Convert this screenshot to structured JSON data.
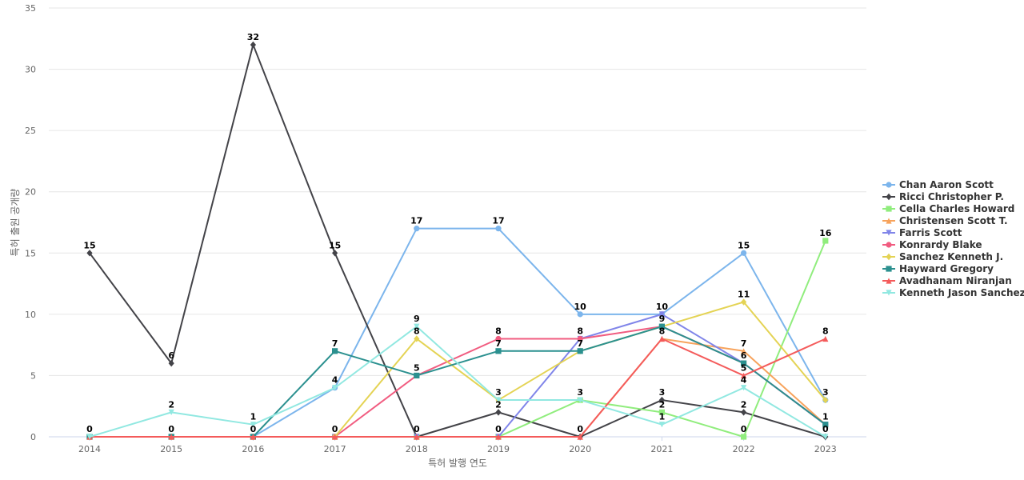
{
  "chart_data": {
    "type": "line",
    "xlabel": "특허 발행 연도",
    "ylabel": "특허 출원 공개량",
    "ylim": [
      0,
      35
    ],
    "yticks": [
      0,
      5,
      10,
      15,
      20,
      25,
      30,
      35
    ],
    "x": [
      "2014",
      "2015",
      "2016",
      "2017",
      "2018",
      "2019",
      "2020",
      "2021",
      "2022",
      "2023"
    ],
    "grid": "horizontal",
    "legend_position": "right",
    "series": [
      {
        "name": "Chan Aaron Scott",
        "color": "#7cb5ec",
        "marker": "circle",
        "values": [
          0,
          0,
          0,
          4,
          17,
          17,
          10,
          10,
          15,
          3
        ]
      },
      {
        "name": "Ricci Christopher P.",
        "color": "#434348",
        "marker": "diamond",
        "values": [
          15,
          6,
          32,
          15,
          0,
          2,
          0,
          3,
          2,
          0
        ]
      },
      {
        "name": "Cella Charles Howard",
        "color": "#90ed7d",
        "marker": "square",
        "values": [
          0,
          0,
          0,
          0,
          0,
          0,
          3,
          2,
          0,
          16
        ]
      },
      {
        "name": "Christensen Scott T.",
        "color": "#f7a35c",
        "marker": "triangle",
        "values": [
          0,
          0,
          0,
          0,
          0,
          0,
          0,
          8,
          7,
          1
        ]
      },
      {
        "name": "Farris Scott",
        "color": "#8085e9",
        "marker": "triangle-down",
        "values": [
          0,
          0,
          0,
          0,
          0,
          0,
          8,
          10,
          6,
          1
        ]
      },
      {
        "name": "Konrardy Blake",
        "color": "#f15c80",
        "marker": "circle",
        "values": [
          0,
          0,
          0,
          0,
          5,
          8,
          8,
          9,
          6,
          1
        ]
      },
      {
        "name": "Sanchez Kenneth J.",
        "color": "#e4d354",
        "marker": "diamond",
        "values": [
          0,
          0,
          0,
          0,
          8,
          3,
          7,
          9,
          11,
          3
        ]
      },
      {
        "name": "Hayward Gregory",
        "color": "#2b908f",
        "marker": "square",
        "values": [
          0,
          0,
          0,
          7,
          5,
          7,
          7,
          9,
          6,
          1
        ]
      },
      {
        "name": "Avadhanam Niranjan",
        "color": "#f45b5b",
        "marker": "triangle",
        "values": [
          0,
          0,
          0,
          0,
          0,
          0,
          0,
          8,
          5,
          8
        ]
      },
      {
        "name": "Kenneth Jason Sanchez",
        "color": "#91e8e1",
        "marker": "triangle-down",
        "values": [
          0,
          2,
          1,
          4,
          9,
          3,
          3,
          1,
          4,
          0
        ]
      }
    ],
    "labels": [
      {
        "text": "15",
        "x": "2014",
        "y": 15
      },
      {
        "text": "0",
        "x": "2014",
        "y": 0
      },
      {
        "text": "6",
        "x": "2015",
        "y": 6
      },
      {
        "text": "2",
        "x": "2015",
        "y": 2
      },
      {
        "text": "0",
        "x": "2015",
        "y": 0
      },
      {
        "text": "32",
        "x": "2016",
        "y": 32
      },
      {
        "text": "1",
        "x": "2016",
        "y": 1
      },
      {
        "text": "0",
        "x": "2016",
        "y": 0
      },
      {
        "text": "15",
        "x": "2017",
        "y": 15
      },
      {
        "text": "7",
        "x": "2017",
        "y": 7
      },
      {
        "text": "4",
        "x": "2017",
        "y": 4
      },
      {
        "text": "0",
        "x": "2017",
        "y": 0
      },
      {
        "text": "17",
        "x": "2018",
        "y": 17
      },
      {
        "text": "9",
        "x": "2018",
        "y": 9
      },
      {
        "text": "8",
        "x": "2018",
        "y": 8
      },
      {
        "text": "5",
        "x": "2018",
        "y": 5
      },
      {
        "text": "0",
        "x": "2018",
        "y": 0
      },
      {
        "text": "17",
        "x": "2019",
        "y": 17
      },
      {
        "text": "8",
        "x": "2019",
        "y": 8
      },
      {
        "text": "7",
        "x": "2019",
        "y": 7
      },
      {
        "text": "3",
        "x": "2019",
        "y": 3
      },
      {
        "text": "2",
        "x": "2019",
        "y": 2
      },
      {
        "text": "0",
        "x": "2019",
        "y": 0
      },
      {
        "text": "10",
        "x": "2020",
        "y": 10
      },
      {
        "text": "8",
        "x": "2020",
        "y": 8
      },
      {
        "text": "7",
        "x": "2020",
        "y": 7
      },
      {
        "text": "3",
        "x": "2020",
        "y": 3
      },
      {
        "text": "0",
        "x": "2020",
        "y": 0
      },
      {
        "text": "10",
        "x": "2021",
        "y": 10
      },
      {
        "text": "9",
        "x": "2021",
        "y": 9
      },
      {
        "text": "8",
        "x": "2021",
        "y": 8
      },
      {
        "text": "3",
        "x": "2021",
        "y": 3
      },
      {
        "text": "2",
        "x": "2021",
        "y": 2
      },
      {
        "text": "1",
        "x": "2021",
        "y": 1
      },
      {
        "text": "15",
        "x": "2022",
        "y": 15
      },
      {
        "text": "11",
        "x": "2022",
        "y": 11
      },
      {
        "text": "7",
        "x": "2022",
        "y": 7
      },
      {
        "text": "6",
        "x": "2022",
        "y": 6
      },
      {
        "text": "5",
        "x": "2022",
        "y": 5
      },
      {
        "text": "4",
        "x": "2022",
        "y": 4
      },
      {
        "text": "2",
        "x": "2022",
        "y": 2
      },
      {
        "text": "0",
        "x": "2022",
        "y": 0
      },
      {
        "text": "16",
        "x": "2023",
        "y": 16
      },
      {
        "text": "8",
        "x": "2023",
        "y": 8
      },
      {
        "text": "3",
        "x": "2023",
        "y": 3
      },
      {
        "text": "1",
        "x": "2023",
        "y": 1
      },
      {
        "text": "0",
        "x": "2023",
        "y": 0
      }
    ]
  }
}
